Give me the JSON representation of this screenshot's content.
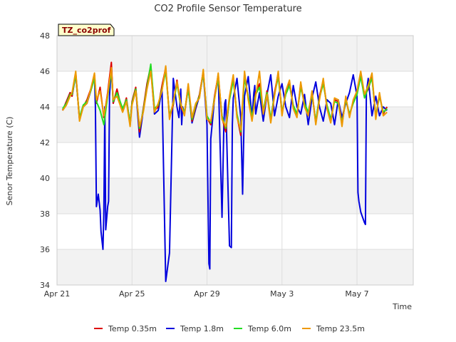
{
  "chart_data": {
    "type": "line",
    "title": "CO2 Profile Sensor Temperature",
    "xlabel": "Time",
    "ylabel": "Senor Temperature (C)",
    "ylim": [
      34,
      48
    ],
    "xlim": [
      0,
      19
    ],
    "y_ticks": [
      34,
      36,
      38,
      40,
      42,
      44,
      46,
      48
    ],
    "x_ticks": [
      {
        "value": 0,
        "label": "Apr 21"
      },
      {
        "value": 4,
        "label": "Apr 25"
      },
      {
        "value": 8,
        "label": "Apr 29"
      },
      {
        "value": 12,
        "label": "May 3"
      },
      {
        "value": 16,
        "label": "May 7"
      }
    ],
    "site_label": "TZ_co2prof",
    "bands": "alternating light grey bands",
    "series": [
      {
        "name": "Temp 0.35m",
        "color": "#dd0000",
        "x": [
          0.3,
          0.5,
          0.7,
          0.8,
          1.0,
          1.2,
          1.4,
          1.6,
          1.8,
          2.0,
          2.1,
          2.3,
          2.5,
          2.7,
          2.9,
          3.0,
          3.2,
          3.4,
          3.5,
          3.7,
          3.9,
          4.0,
          4.2,
          4.4,
          4.6,
          4.8,
          5.0,
          5.2,
          5.4,
          5.6,
          5.8,
          6.0,
          6.2,
          6.4,
          6.6,
          6.8,
          7.0,
          7.2,
          7.4,
          7.6,
          7.8,
          8.0,
          8.2,
          8.4,
          8.6,
          8.8,
          9.0,
          9.2,
          9.4,
          9.6,
          9.8,
          10.0,
          10.2,
          10.4,
          10.6,
          10.8,
          11.0,
          11.2,
          11.4,
          11.6,
          11.8,
          12.0,
          12.2,
          12.4,
          12.6,
          12.8,
          13.0,
          13.2,
          13.4,
          13.6,
          13.8,
          14.0,
          14.2,
          14.4,
          14.6,
          14.8,
          15.0,
          15.2,
          15.4,
          15.6,
          15.8,
          16.0,
          16.2,
          16.4,
          16.6,
          16.8,
          17.0,
          17.2,
          17.4,
          17.6
        ],
        "values": [
          43.8,
          44.3,
          44.8,
          44.6,
          45.9,
          43.3,
          44.0,
          44.4,
          45.0,
          45.8,
          44.2,
          45.1,
          43.4,
          44.8,
          46.5,
          44.2,
          45.0,
          44.1,
          43.8,
          44.5,
          43.0,
          44.3,
          45.1,
          42.6,
          43.9,
          45.3,
          46.3,
          43.8,
          44.0,
          45.2,
          46.2,
          43.4,
          44.1,
          45.5,
          44.0,
          43.6,
          45.2,
          43.2,
          44.0,
          44.7,
          46.0,
          43.4,
          43.0,
          44.6,
          45.8,
          43.4,
          42.6,
          44.5,
          45.7,
          43.5,
          42.4,
          45.8,
          44.5,
          43.3,
          44.8,
          45.3,
          43.7,
          44.9,
          43.2,
          44.8,
          45.9,
          43.6,
          44.8,
          45.4,
          44.0,
          43.5,
          45.3,
          44.1,
          43.6,
          44.8,
          43.1,
          44.6,
          45.5,
          44.0,
          43.2,
          44.4,
          44.3,
          43.0,
          44.5,
          43.5,
          44.3,
          44.8,
          45.9,
          44.6,
          45.0,
          45.7,
          43.4,
          44.7,
          43.6,
          44.0
        ]
      },
      {
        "name": "Temp 1.8m",
        "color": "#0000dd",
        "x": [
          0.3,
          0.5,
          0.7,
          0.8,
          1.0,
          1.2,
          1.4,
          1.6,
          1.8,
          2.0,
          2.05,
          2.1,
          2.2,
          2.3,
          2.35,
          2.45,
          2.5,
          2.55,
          2.6,
          2.7,
          2.75,
          2.8,
          2.9,
          3.0,
          3.2,
          3.4,
          3.5,
          3.7,
          3.9,
          4.0,
          4.2,
          4.4,
          4.6,
          4.8,
          5.0,
          5.2,
          5.4,
          5.6,
          5.8,
          6.0,
          6.2,
          6.4,
          6.5,
          6.55,
          6.6,
          6.65,
          6.7,
          6.8,
          7.0,
          7.2,
          7.4,
          7.6,
          7.8,
          8.0,
          8.1,
          8.15,
          8.2,
          8.3,
          8.4,
          8.6,
          8.8,
          8.9,
          8.95,
          9.0,
          9.2,
          9.3,
          9.35,
          9.4,
          9.6,
          9.8,
          9.9,
          10.0,
          10.2,
          10.4,
          10.5,
          10.55,
          10.6,
          10.8,
          11.0,
          11.2,
          11.4,
          11.6,
          11.8,
          12.0,
          12.2,
          12.4,
          12.6,
          12.8,
          13.0,
          13.2,
          13.4,
          13.6,
          13.8,
          14.0,
          14.2,
          14.4,
          14.6,
          14.8,
          15.0,
          15.2,
          15.4,
          15.6,
          15.8,
          16.0,
          16.05,
          16.1,
          16.2,
          16.3,
          16.4,
          16.45,
          16.5,
          16.6,
          16.8,
          17.0,
          17.2,
          17.4,
          17.6
        ],
        "values": [
          43.8,
          44.3,
          44.8,
          44.6,
          45.8,
          43.3,
          44.0,
          44.2,
          44.9,
          45.7,
          44.0,
          38.4,
          39.1,
          38.2,
          37.0,
          36.0,
          38.2,
          44.0,
          37.1,
          38.4,
          38.7,
          44.6,
          46.3,
          44.2,
          44.9,
          44.0,
          43.8,
          44.4,
          43.0,
          44.2,
          45.0,
          42.3,
          43.8,
          45.2,
          46.2,
          43.6,
          43.8,
          45.0,
          34.2,
          35.8,
          45.6,
          44.0,
          43.4,
          44.1,
          45.0,
          43.0,
          44.0,
          43.6,
          45.1,
          43.1,
          43.9,
          44.6,
          45.9,
          43.0,
          35.2,
          34.9,
          42.2,
          43.3,
          44.5,
          45.8,
          37.8,
          43.0,
          44.2,
          44.4,
          36.2,
          36.1,
          43.0,
          44.5,
          45.6,
          43.4,
          39.1,
          44.6,
          45.7,
          43.4,
          44.8,
          45.2,
          43.6,
          44.8,
          43.2,
          44.7,
          45.8,
          43.5,
          44.6,
          45.3,
          44.0,
          43.4,
          45.2,
          44.0,
          43.6,
          44.7,
          43.0,
          44.5,
          45.4,
          44.0,
          43.2,
          44.4,
          44.2,
          43.0,
          44.4,
          43.4,
          44.2,
          44.8,
          45.8,
          44.6,
          39.2,
          38.7,
          38.1,
          37.8,
          37.5,
          37.4,
          44.8,
          45.6,
          43.5,
          44.6,
          43.5,
          44.0,
          43.8
        ]
      },
      {
        "name": "Temp 6.0m",
        "color": "#22dd22",
        "x": [
          0.3,
          0.5,
          0.7,
          0.8,
          1.0,
          1.2,
          1.4,
          1.6,
          1.8,
          2.0,
          2.1,
          2.3,
          2.5,
          2.7,
          2.9,
          3.0,
          3.2,
          3.4,
          3.5,
          3.7,
          3.9,
          4.0,
          4.2,
          4.4,
          4.6,
          4.8,
          5.0,
          5.2,
          5.4,
          5.6,
          5.8,
          6.0,
          6.2,
          6.4,
          6.6,
          6.8,
          7.0,
          7.2,
          7.4,
          7.6,
          7.8,
          8.0,
          8.2,
          8.4,
          8.6,
          8.8,
          9.0,
          9.2,
          9.4,
          9.6,
          9.8,
          10.0,
          10.2,
          10.4,
          10.6,
          10.8,
          11.0,
          11.2,
          11.4,
          11.6,
          11.8,
          12.0,
          12.2,
          12.4,
          12.6,
          12.8,
          13.0,
          13.2,
          13.4,
          13.6,
          13.8,
          14.0,
          14.2,
          14.4,
          14.6,
          14.8,
          15.0,
          15.2,
          15.4,
          15.6,
          15.8,
          16.0,
          16.2,
          16.4,
          16.6,
          16.8,
          17.0,
          17.2,
          17.4,
          17.6
        ],
        "values": [
          43.9,
          44.2,
          44.7,
          44.7,
          45.8,
          43.4,
          44.1,
          44.3,
          44.9,
          45.6,
          44.3,
          43.8,
          43.0,
          44.6,
          46.0,
          44.3,
          44.8,
          44.2,
          43.9,
          44.4,
          43.1,
          44.2,
          45.0,
          42.8,
          43.8,
          45.1,
          46.4,
          43.9,
          44.1,
          45.0,
          46.0,
          43.5,
          44.2,
          45.3,
          44.1,
          43.7,
          45.0,
          43.3,
          44.1,
          44.6,
          45.9,
          43.5,
          43.1,
          44.5,
          45.6,
          43.5,
          42.8,
          44.4,
          45.5,
          43.6,
          42.6,
          45.6,
          44.6,
          43.4,
          44.7,
          45.1,
          43.8,
          44.8,
          43.3,
          44.7,
          45.7,
          43.7,
          44.7,
          45.2,
          44.1,
          43.6,
          45.1,
          44.2,
          43.7,
          44.7,
          43.2,
          44.5,
          45.3,
          44.1,
          43.3,
          44.3,
          44.2,
          43.1,
          44.4,
          43.6,
          44.2,
          44.7,
          45.7,
          44.5,
          45.1,
          45.6,
          43.5,
          44.6,
          43.7,
          43.9
        ]
      },
      {
        "name": "Temp 23.5m",
        "color": "#ee9900",
        "x": [
          0.3,
          0.5,
          0.7,
          0.8,
          1.0,
          1.2,
          1.4,
          1.6,
          1.8,
          2.0,
          2.1,
          2.3,
          2.5,
          2.7,
          2.9,
          3.0,
          3.2,
          3.4,
          3.5,
          3.7,
          3.9,
          4.0,
          4.2,
          4.4,
          4.6,
          4.8,
          5.0,
          5.2,
          5.4,
          5.6,
          5.8,
          6.0,
          6.2,
          6.4,
          6.6,
          6.8,
          7.0,
          7.2,
          7.4,
          7.6,
          7.8,
          8.0,
          8.2,
          8.4,
          8.6,
          8.8,
          9.0,
          9.2,
          9.4,
          9.6,
          9.8,
          10.0,
          10.2,
          10.4,
          10.6,
          10.8,
          11.0,
          11.2,
          11.4,
          11.6,
          11.8,
          12.0,
          12.2,
          12.4,
          12.6,
          12.8,
          13.0,
          13.2,
          13.4,
          13.6,
          13.8,
          14.0,
          14.2,
          14.4,
          14.6,
          14.8,
          15.0,
          15.2,
          15.4,
          15.6,
          15.8,
          16.0,
          16.2,
          16.4,
          16.6,
          16.8,
          17.0,
          17.2,
          17.4,
          17.6
        ],
        "values": [
          43.8,
          44.1,
          44.6,
          44.8,
          46.0,
          43.2,
          44.0,
          44.2,
          45.0,
          45.9,
          44.4,
          44.9,
          43.5,
          44.7,
          46.2,
          44.4,
          44.6,
          44.0,
          43.7,
          44.3,
          42.9,
          44.1,
          44.9,
          42.9,
          43.7,
          45.0,
          46.0,
          43.7,
          44.2,
          44.9,
          46.3,
          43.3,
          44.3,
          45.4,
          44.2,
          43.5,
          45.3,
          43.4,
          44.2,
          44.5,
          46.1,
          43.3,
          43.2,
          44.4,
          45.9,
          43.3,
          42.9,
          44.6,
          45.8,
          43.4,
          42.7,
          46.0,
          44.4,
          43.2,
          44.6,
          46.0,
          43.6,
          44.7,
          43.1,
          44.6,
          46.0,
          43.5,
          44.9,
          45.5,
          43.9,
          43.4,
          45.4,
          44.0,
          43.5,
          44.9,
          43.0,
          44.4,
          45.6,
          43.9,
          43.1,
          44.5,
          44.4,
          42.9,
          44.6,
          43.4,
          44.4,
          44.9,
          46.0,
          44.7,
          45.2,
          45.9,
          43.3,
          44.8,
          43.5,
          43.7
        ]
      }
    ]
  }
}
